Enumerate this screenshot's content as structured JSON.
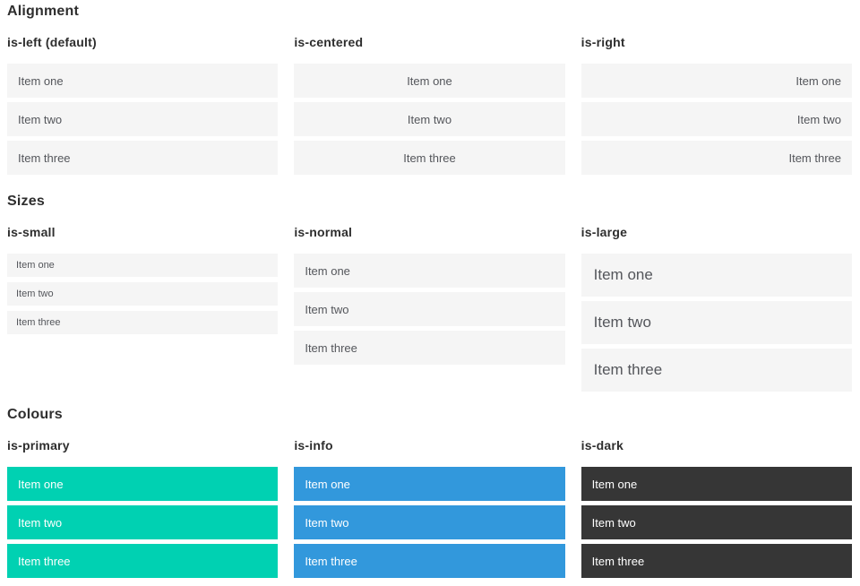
{
  "sections": [
    {
      "title": "Alignment",
      "columns": [
        {
          "heading": "is-left (default)",
          "items": [
            "Item one",
            "Item two",
            "Item three"
          ]
        },
        {
          "heading": "is-centered",
          "items": [
            "Item one",
            "Item two",
            "Item three"
          ]
        },
        {
          "heading": "is-right",
          "items": [
            "Item one",
            "Item two",
            "Item three"
          ]
        }
      ]
    },
    {
      "title": "Sizes",
      "columns": [
        {
          "heading": "is-small",
          "items": [
            "Item one",
            "Item two",
            "Item three"
          ]
        },
        {
          "heading": "is-normal",
          "items": [
            "Item one",
            "Item two",
            "Item three"
          ]
        },
        {
          "heading": "is-large",
          "items": [
            "Item one",
            "Item two",
            "Item three"
          ]
        }
      ]
    },
    {
      "title": "Colours",
      "columns": [
        {
          "heading": "is-primary",
          "items": [
            "Item one",
            "Item two",
            "Item three"
          ]
        },
        {
          "heading": "is-info",
          "items": [
            "Item one",
            "Item two",
            "Item three"
          ]
        },
        {
          "heading": "is-dark",
          "items": [
            "Item one",
            "Item two",
            "Item three"
          ]
        }
      ]
    }
  ],
  "colors": {
    "primary": "#00d1b2",
    "info": "#3298dc",
    "dark": "#363636",
    "item_background": "#f5f5f5",
    "heading_text": "#2e2e2e",
    "item_text": "#54565b",
    "colored_item_text": "#ffffff"
  }
}
